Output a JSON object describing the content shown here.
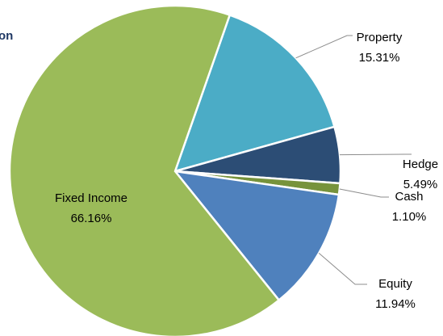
{
  "chart_data": {
    "type": "pie",
    "title": "on",
    "categories": [
      "Property",
      "Hedge",
      "Cash",
      "Equity",
      "Fixed Income"
    ],
    "values": [
      15.31,
      5.49,
      1.1,
      11.94,
      66.16
    ],
    "value_labels": [
      "15.31%",
      "5.49%",
      "1.10%",
      "11.94%",
      "66.16%"
    ],
    "colors": [
      "#4bacc6",
      "#2c4d75",
      "#77933c",
      "#4f81bd",
      "#9bbb59"
    ]
  }
}
